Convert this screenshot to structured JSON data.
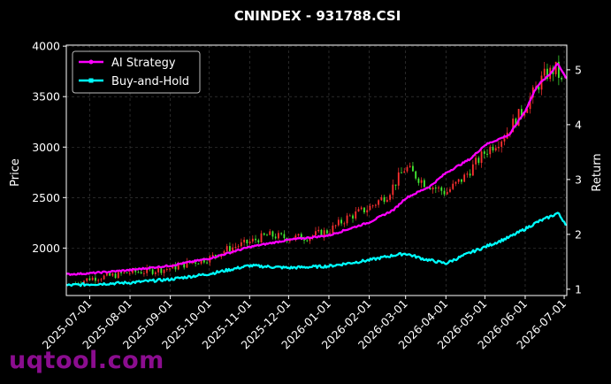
{
  "watermark": "uqtool.com",
  "chart_data": {
    "type": "line",
    "title": "CNINDEX - 931788.CSI",
    "ylabel_left": "Price",
    "ylabel_right": "Return",
    "xlabel": "",
    "x_tick_labels": [
      "2025-07-01",
      "2025-08-01",
      "2025-09-01",
      "2025-10-01",
      "2025-11-01",
      "2025-12-01",
      "2026-01-01",
      "2026-02-01",
      "2026-03-01",
      "2026-04-01",
      "2026-05-01",
      "2026-06-01",
      "2026-07-01"
    ],
    "x_range": [
      "2025-06-13",
      "2026-07-03"
    ],
    "y_left_ticks": [
      2000,
      2500,
      3000,
      3500,
      4000
    ],
    "y_left_range": [
      1530,
      4010
    ],
    "y_right_ticks": [
      1,
      2,
      3,
      4,
      5
    ],
    "y_right_range": [
      0.885,
      5.45
    ],
    "grid": true,
    "legend_position": "top-left",
    "colors": {
      "ai_strategy": "#ff00ff",
      "buy_and_hold": "#00ffff",
      "candle_up": "#ff3030",
      "candle_down": "#44ee33",
      "grid": "#444444",
      "axes": "#ffffff"
    },
    "series": [
      {
        "name": "AI Strategy",
        "axis": "right",
        "x": [
          "2025-06-13",
          "2025-07-01",
          "2025-08-01",
          "2025-09-01",
          "2025-10-01",
          "2025-11-01",
          "2025-12-01",
          "2026-01-01",
          "2026-02-01",
          "2026-02-20",
          "2026-03-01",
          "2026-03-20",
          "2026-04-01",
          "2026-04-20",
          "2026-05-01",
          "2026-05-20",
          "2026-06-01",
          "2026-06-10",
          "2026-06-20",
          "2026-06-26",
          "2026-07-03"
        ],
        "values": [
          1.27,
          1.29,
          1.35,
          1.43,
          1.56,
          1.77,
          1.9,
          1.98,
          2.22,
          2.45,
          2.66,
          2.88,
          3.12,
          3.38,
          3.63,
          3.82,
          4.25,
          4.7,
          4.92,
          5.12,
          4.83
        ]
      },
      {
        "name": "Buy-and-Hold",
        "axis": "right",
        "x": [
          "2025-06-13",
          "2025-07-01",
          "2025-08-01",
          "2025-09-01",
          "2025-10-01",
          "2025-11-01",
          "2025-12-01",
          "2026-01-01",
          "2026-02-01",
          "2026-02-20",
          "2026-03-01",
          "2026-03-15",
          "2026-04-01",
          "2026-04-20",
          "2026-05-01",
          "2026-05-20",
          "2026-06-01",
          "2026-06-10",
          "2026-06-20",
          "2026-06-26",
          "2026-07-03"
        ],
        "values": [
          1.07,
          1.09,
          1.12,
          1.18,
          1.28,
          1.43,
          1.39,
          1.42,
          1.53,
          1.62,
          1.65,
          1.55,
          1.47,
          1.67,
          1.77,
          1.95,
          2.1,
          2.22,
          2.32,
          2.39,
          2.17
        ]
      },
      {
        "name": "",
        "type": "candlestick",
        "axis": "left",
        "x": [
          "2025-06-20",
          "2025-07-01",
          "2025-07-15",
          "2025-08-01",
          "2025-08-15",
          "2025-09-01",
          "2025-09-15",
          "2025-10-01",
          "2025-10-15",
          "2025-11-01",
          "2025-11-15",
          "2025-12-01",
          "2025-12-15",
          "2026-01-01",
          "2026-01-15",
          "2026-02-01",
          "2026-02-15",
          "2026-03-01",
          "2026-03-15",
          "2026-04-01",
          "2026-04-15",
          "2026-05-01",
          "2026-05-15",
          "2026-06-01",
          "2026-06-15",
          "2026-06-25",
          "2026-07-01"
        ],
        "values": [
          1650,
          1700,
          1720,
          1760,
          1770,
          1800,
          1850,
          1900,
          1990,
          2060,
          2130,
          2100,
          2110,
          2170,
          2300,
          2400,
          2530,
          2800,
          2650,
          2550,
          2700,
          2950,
          3100,
          3400,
          3700,
          3780,
          3560
        ]
      }
    ]
  }
}
